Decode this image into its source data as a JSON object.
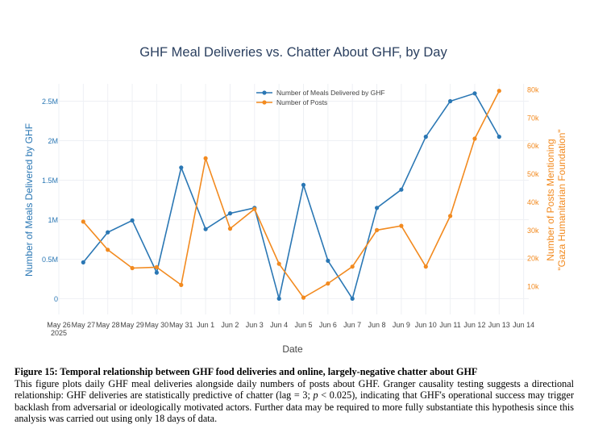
{
  "chart_data": {
    "type": "line",
    "title": "GHF Meal Deliveries vs. Chatter About GHF, by Day",
    "xlabel": "Date",
    "ylabel_left": "Number of Meals Delivered by GHF",
    "ylabel_right_line1": "Number of Posts Mentioning",
    "ylabel_right_line2": "\"Gaza Humanitarian Foundation\"",
    "x_ticks": [
      "May 26",
      "May 27",
      "May 28",
      "May 29",
      "May 30",
      "May 31",
      "Jun 1",
      "Jun 2",
      "Jun 3",
      "Jun 4",
      "Jun 5",
      "Jun 6",
      "Jun 7",
      "Jun 8",
      "Jun 9",
      "Jun 10",
      "Jun 11",
      "Jun 12",
      "Jun 13",
      "Jun 14"
    ],
    "x_year_label": "2025",
    "y_left": {
      "range": [
        -0.2,
        2.72
      ],
      "ticks": [
        0,
        0.5,
        1,
        1.5,
        2,
        2.5
      ],
      "tick_labels": [
        "0",
        "0.5M",
        "1M",
        "1.5M",
        "2M",
        "2.5M"
      ],
      "unit": "millions of meals"
    },
    "y_right": {
      "range": [
        0,
        82
      ],
      "ticks": [
        10,
        20,
        30,
        40,
        50,
        60,
        70,
        80
      ],
      "tick_labels": [
        "10k",
        "20k",
        "30k",
        "40k",
        "50k",
        "60k",
        "70k",
        "80k"
      ],
      "unit": "thousands of posts"
    },
    "series": [
      {
        "name": "Number of Meals Delivered by GHF",
        "axis": "left",
        "color": "#2a77b4",
        "x": [
          "May 27",
          "May 28",
          "May 29",
          "May 30",
          "May 31",
          "Jun 1",
          "Jun 2",
          "Jun 3",
          "Jun 4",
          "Jun 5",
          "Jun 6",
          "Jun 7",
          "Jun 8",
          "Jun 9",
          "Jun 10",
          "Jun 11",
          "Jun 12",
          "Jun 13"
        ],
        "values": [
          0.46,
          0.84,
          0.99,
          0.33,
          1.66,
          0.88,
          1.08,
          1.15,
          0.0,
          1.44,
          0.48,
          0.0,
          1.15,
          1.38,
          2.05,
          2.5,
          2.6,
          2.05
        ]
      },
      {
        "name": "Number of Posts",
        "axis": "right",
        "color": "#f28a1f",
        "x": [
          "May 27",
          "May 28",
          "May 29",
          "May 30",
          "May 31",
          "Jun 1",
          "Jun 2",
          "Jun 3",
          "Jun 4",
          "Jun 5",
          "Jun 6",
          "Jun 7",
          "Jun 8",
          "Jun 9",
          "Jun 10",
          "Jun 11",
          "Jun 12",
          "Jun 13"
        ],
        "values": [
          33,
          23,
          16.5,
          16.8,
          10.5,
          55.5,
          30.5,
          37.5,
          18,
          6,
          11,
          17,
          30,
          31.5,
          17,
          35,
          62.5,
          79.5
        ]
      }
    ],
    "legend_position": "top-center",
    "grid": true
  },
  "figure": {
    "caption_title": "Figure 15: Temporal relationship between GHF food deliveries and online, largely-negative chatter about GHF",
    "caption_body_before_p": "This figure plots daily GHF meal deliveries alongside daily numbers of posts about GHF. Granger causality testing suggests a directional relationship: GHF deliveries are statistically predictive of chatter (lag = 3; ",
    "caption_p": "p",
    "caption_body_after_p": " < 0.025), indicating that GHF's operational success may trigger backlash from adversarial or ideologically motivated actors. Further data may be required to more fully substantiate this hypothesis since this analysis was carried out using only 18 days of data."
  }
}
